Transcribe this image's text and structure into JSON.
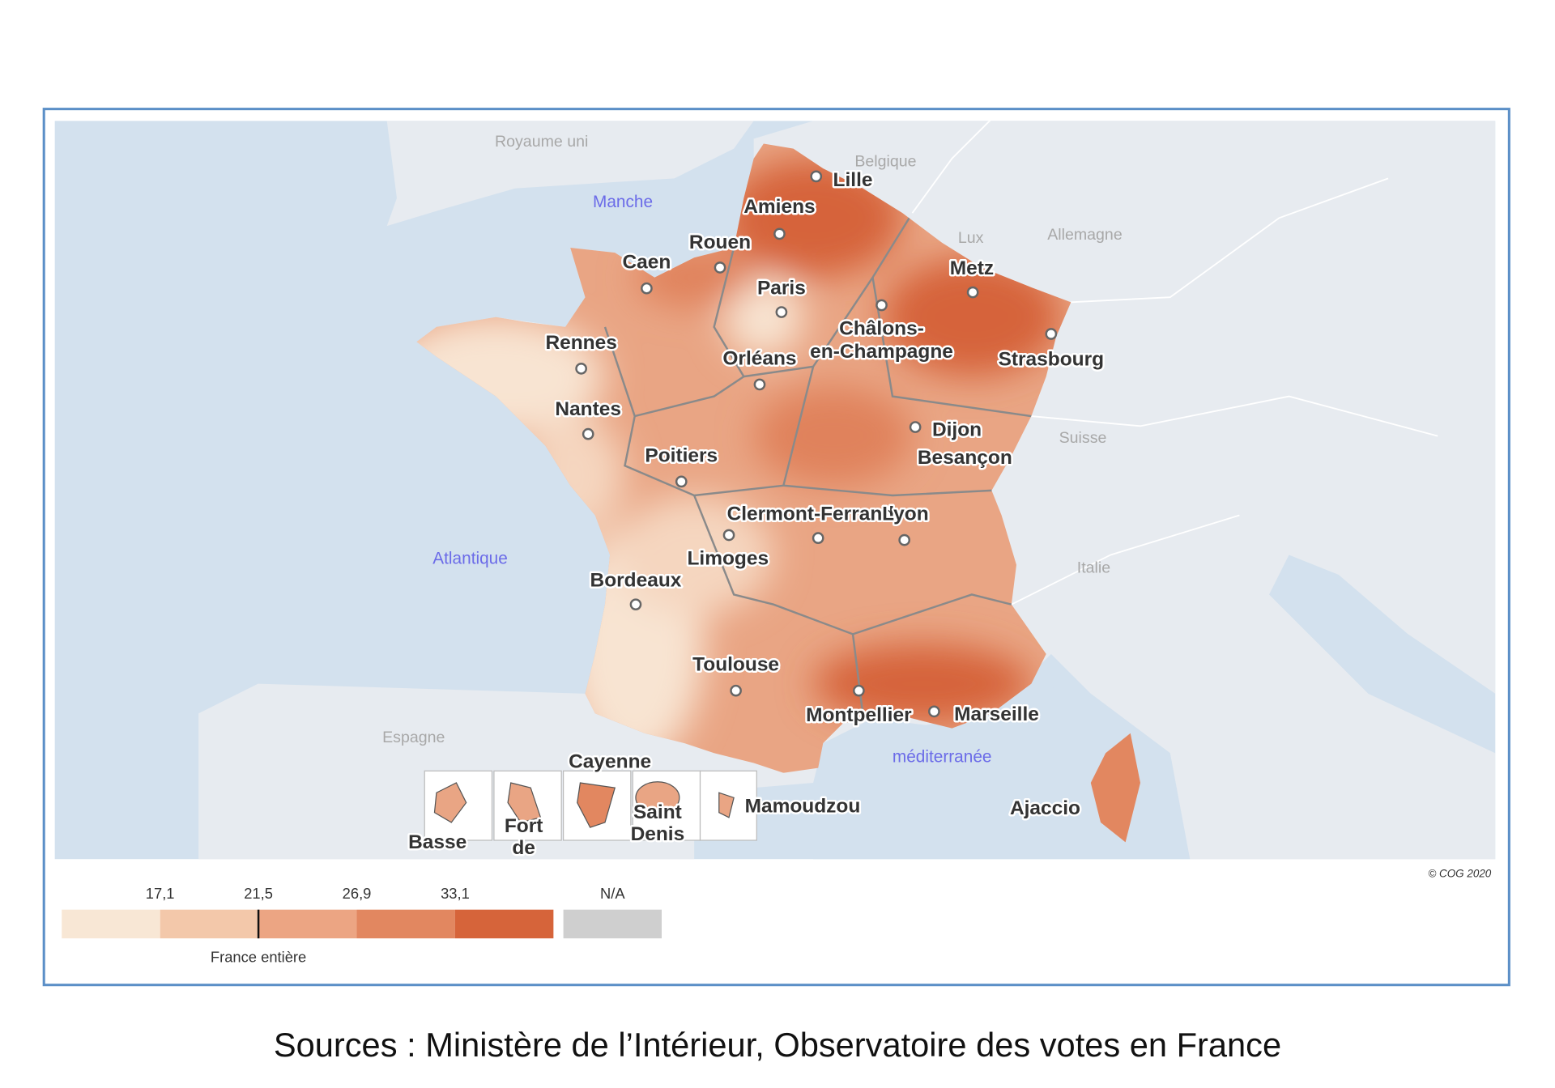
{
  "map": {
    "country_labels": [
      "Royaume uni",
      "Belgique",
      "Lux",
      "Allemagne",
      "Suisse",
      "Italie",
      "Espagne"
    ],
    "sea_labels": [
      "Manche",
      "Atlantique",
      "méditerranée"
    ],
    "city_labels": [
      "Lille",
      "Amiens",
      "Rouen",
      "Caen",
      "Paris",
      "Metz",
      "Châlons-",
      "en-Champagne",
      "Rennes",
      "Orléans",
      "Strasbourg",
      "Nantes",
      "Dijon",
      "Poitiers",
      "Besançon",
      "Clermont-Ferrand",
      "Lyon",
      "Limoges",
      "Bordeaux",
      "Toulouse",
      "Montpellier",
      "Marseille",
      "Ajaccio",
      "Cayenne",
      "Mamoudzou",
      "Fort",
      "de",
      "Saint",
      "Denis",
      "Basse"
    ],
    "copyright": "© COG 2020"
  },
  "legend": {
    "ticks": [
      {
        "value": 17.1,
        "label": "17,1"
      },
      {
        "value": 21.5,
        "label": "21,5"
      },
      {
        "value": 26.9,
        "label": "26,9"
      },
      {
        "value": 33.1,
        "label": "33,1"
      }
    ],
    "colors": [
      "#f8e7d5",
      "#f3c8aa",
      "#eca583",
      "#e28760",
      "#d6643a"
    ],
    "na_label": "N/A",
    "na_color": "#cfcfcf",
    "national_label": "France entière"
  },
  "source": "Sources : Ministère de l’Intérieur, Observatoire des votes en France"
}
